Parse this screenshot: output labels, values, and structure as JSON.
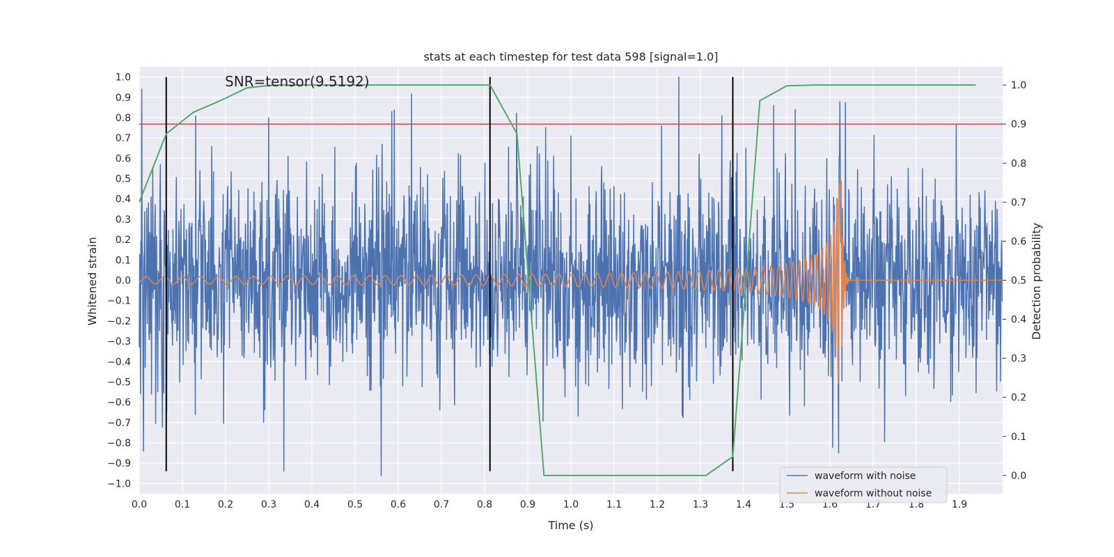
{
  "chart_data": {
    "type": "line",
    "title": "stats at each timestep for test data 598 [signal=1.0]",
    "annotation": "SNR=tensor(9.5192)",
    "xlabel": "Time (s)",
    "ylabel": "Whitened strain",
    "y2label": "Detection probability",
    "xlim": [
      0.0,
      2.0
    ],
    "ylim": [
      -1.05,
      1.05
    ],
    "y2lim": [
      -0.0466,
      1.0466
    ],
    "xticks": [
      "0.0",
      "0.1",
      "0.2",
      "0.3",
      "0.4",
      "0.5",
      "0.6",
      "0.7",
      "0.8",
      "0.9",
      "1.0",
      "1.1",
      "1.2",
      "1.3",
      "1.4",
      "1.5",
      "1.6",
      "1.7",
      "1.8",
      "1.9"
    ],
    "yticks": [
      "1.0",
      "0.9",
      "0.8",
      "0.7",
      "0.6",
      "0.5",
      "0.4",
      "0.3",
      "0.2",
      "0.1",
      "0.0",
      "−0.1",
      "−0.2",
      "−0.3",
      "−0.4",
      "−0.5",
      "−0.6",
      "−0.7",
      "−0.8",
      "−0.9",
      "−1.0"
    ],
    "y2ticks": [
      "1.0",
      "0.9",
      "0.8",
      "0.7",
      "0.6",
      "0.5",
      "0.4",
      "0.3",
      "0.2",
      "0.1",
      "0.0"
    ],
    "grid": true,
    "legend_position": "lower-right",
    "series": [
      {
        "name": "waveform with noise",
        "color": "#4c72b0",
        "axis": "left",
        "samples": 2048,
        "noise_std": 0.26,
        "peak_samples": [
          {
            "x": 0.006,
            "y": 0.94
          },
          {
            "x": 0.01,
            "y": -0.84
          },
          {
            "x": 0.3,
            "y": 0.8
          },
          {
            "x": 0.335,
            "y": -0.94
          },
          {
            "x": 0.585,
            "y": 0.83
          },
          {
            "x": 1.25,
            "y": 1.0
          },
          {
            "x": 1.0,
            "y": 0.71
          },
          {
            "x": 1.375,
            "y": -0.75
          },
          {
            "x": 1.52,
            "y": 0.84
          },
          {
            "x": 1.62,
            "y": -0.85
          }
        ]
      },
      {
        "name": "waveform without noise",
        "color": "#dd8452",
        "axis": "left",
        "chirp_start": 0.0,
        "chirp_merger": 1.625,
        "chirp_end": 1.65,
        "peak_amplitude": 0.6
      },
      {
        "name": "detection probability",
        "color": "#55a868",
        "axis": "right",
        "points": [
          {
            "x": 0.0,
            "y": 0.7
          },
          {
            "x": 0.0625,
            "y": 0.875
          },
          {
            "x": 0.125,
            "y": 0.93
          },
          {
            "x": 0.1875,
            "y": 0.96
          },
          {
            "x": 0.25,
            "y": 0.993
          },
          {
            "x": 0.3125,
            "y": 1.0
          },
          {
            "x": 0.375,
            "y": 1.0
          },
          {
            "x": 0.4375,
            "y": 1.0
          },
          {
            "x": 0.5,
            "y": 1.0
          },
          {
            "x": 0.5625,
            "y": 1.0
          },
          {
            "x": 0.625,
            "y": 1.0
          },
          {
            "x": 0.6875,
            "y": 1.0
          },
          {
            "x": 0.75,
            "y": 1.0
          },
          {
            "x": 0.8125,
            "y": 1.0
          },
          {
            "x": 0.875,
            "y": 0.875
          },
          {
            "x": 0.9375,
            "y": 0.0
          },
          {
            "x": 1.0,
            "y": 0.0
          },
          {
            "x": 1.0625,
            "y": 0.0
          },
          {
            "x": 1.125,
            "y": 0.0
          },
          {
            "x": 1.1875,
            "y": 0.0
          },
          {
            "x": 1.25,
            "y": 0.0
          },
          {
            "x": 1.3125,
            "y": 0.0
          },
          {
            "x": 1.375,
            "y": 0.048
          },
          {
            "x": 1.4375,
            "y": 0.96
          },
          {
            "x": 1.5,
            "y": 0.998
          },
          {
            "x": 1.5625,
            "y": 1.0
          },
          {
            "x": 1.625,
            "y": 1.0
          },
          {
            "x": 1.6875,
            "y": 1.0
          },
          {
            "x": 1.75,
            "y": 1.0
          },
          {
            "x": 1.8125,
            "y": 1.0
          },
          {
            "x": 1.875,
            "y": 1.0
          },
          {
            "x": 1.9375,
            "y": 1.0
          }
        ]
      }
    ],
    "threshold": {
      "value": 0.9,
      "axis": "right",
      "color": "#c44e52"
    },
    "vertical_markers": [
      0.0625,
      0.8125,
      1.375
    ],
    "vertical_marker_range": [
      -0.94,
      1.0
    ],
    "vertical_marker_color": "#000000"
  }
}
